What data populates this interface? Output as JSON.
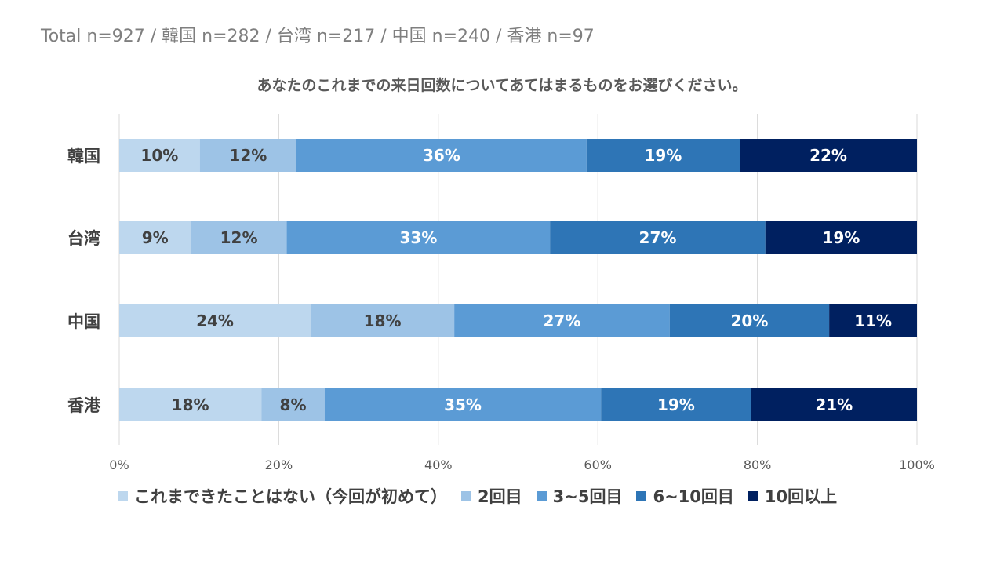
{
  "sample_sizes": "Total n=927 / 韓国 n=282 / 台湾 n=217 / 中国  n=240 / 香港 n=97",
  "chart_data": {
    "type": "bar",
    "orientation": "horizontal",
    "stacked": "percent",
    "title": "あなたのこれまでの来日回数についてあてはまるものをお選びください。",
    "categories": [
      "韓国",
      "台湾",
      "中国",
      "香港"
    ],
    "series": [
      {
        "name": "これまできたことはない（今回が初めて）",
        "color": "#bdd7ee",
        "values": [
          10,
          9,
          24,
          18
        ],
        "labels": [
          "10%",
          "9%",
          "24%",
          "18%"
        ],
        "label_color": "#404040"
      },
      {
        "name": "2回目",
        "color": "#9dc3e6",
        "values": [
          12,
          12,
          18,
          8
        ],
        "labels": [
          "12%",
          "12%",
          "18%",
          "8%"
        ],
        "label_color": "#404040"
      },
      {
        "name": "3~5回目",
        "color": "#5b9bd5",
        "values": [
          36,
          33,
          27,
          35
        ],
        "labels": [
          "36%",
          "33%",
          "27%",
          "35%"
        ],
        "label_color": "#ffffff"
      },
      {
        "name": "6~10回目",
        "color": "#2e75b6",
        "values": [
          19,
          27,
          20,
          19
        ],
        "labels": [
          "19%",
          "27%",
          "20%",
          "19%"
        ],
        "label_color": "#ffffff"
      },
      {
        "name": "10回以上",
        "color": "#002060",
        "values": [
          22,
          19,
          11,
          21
        ],
        "labels": [
          "22%",
          "19%",
          "11%",
          "21%"
        ],
        "label_color": "#ffffff"
      }
    ],
    "x_ticks": [
      "0%",
      "20%",
      "40%",
      "60%",
      "80%",
      "100%"
    ],
    "xlim": [
      0,
      100
    ],
    "grid": true,
    "legend_position": "bottom"
  }
}
